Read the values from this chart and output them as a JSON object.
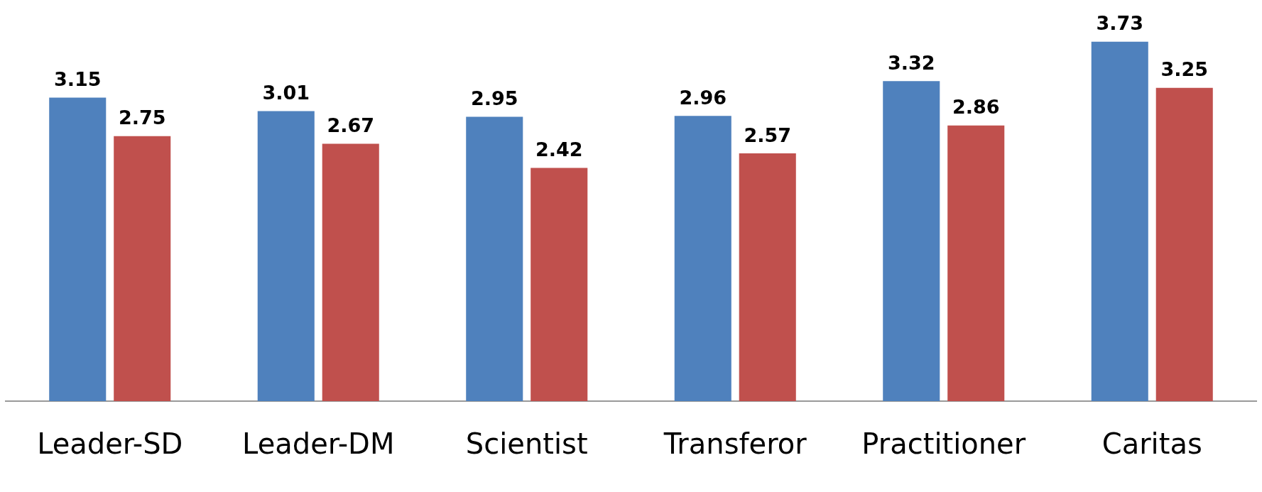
{
  "chart_data": {
    "type": "bar",
    "categories": [
      "Leader-SD",
      "Leader-DM",
      "Scientist",
      "Transferor",
      "Practitioner",
      "Caritas"
    ],
    "series": [
      {
        "color": "#4f81bd",
        "values": [
          3.15,
          3.01,
          2.95,
          2.96,
          3.32,
          3.73
        ]
      },
      {
        "color": "#c0504d",
        "values": [
          2.75,
          2.67,
          2.42,
          2.57,
          2.86,
          3.25
        ]
      }
    ],
    "data_labels": true,
    "grid": false,
    "legend": false
  }
}
